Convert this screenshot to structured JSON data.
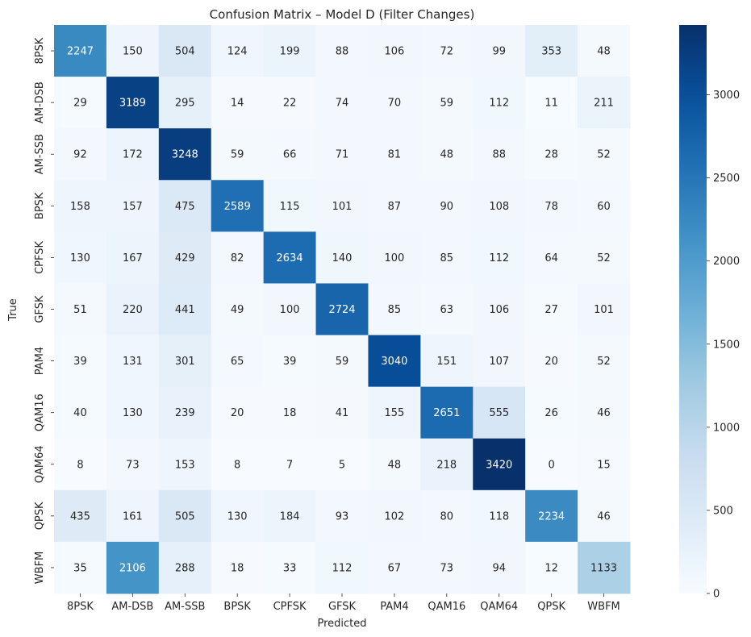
{
  "chart_data": {
    "type": "heatmap",
    "title": "Confusion Matrix – Model D (Filter Changes)",
    "xlabel": "Predicted",
    "ylabel": "True",
    "x_categories": [
      "8PSK",
      "AM-DSB",
      "AM-SSB",
      "BPSK",
      "CPFSK",
      "GFSK",
      "PAM4",
      "QAM16",
      "QAM64",
      "QPSK",
      "WBFM"
    ],
    "y_categories": [
      "8PSK",
      "AM-DSB",
      "AM-SSB",
      "BPSK",
      "CPFSK",
      "GFSK",
      "PAM4",
      "QAM16",
      "QAM64",
      "QPSK",
      "WBFM"
    ],
    "values": [
      [
        2247,
        150,
        504,
        124,
        199,
        88,
        106,
        72,
        99,
        353,
        48
      ],
      [
        29,
        3189,
        295,
        14,
        22,
        74,
        70,
        59,
        112,
        11,
        211
      ],
      [
        92,
        172,
        3248,
        59,
        66,
        71,
        81,
        48,
        88,
        28,
        52
      ],
      [
        158,
        157,
        475,
        2589,
        115,
        101,
        87,
        90,
        108,
        78,
        60
      ],
      [
        130,
        167,
        429,
        82,
        2634,
        140,
        100,
        85,
        112,
        64,
        52
      ],
      [
        51,
        220,
        441,
        49,
        100,
        2724,
        85,
        63,
        106,
        27,
        101
      ],
      [
        39,
        131,
        301,
        65,
        39,
        59,
        3040,
        151,
        107,
        20,
        52
      ],
      [
        40,
        130,
        239,
        20,
        18,
        41,
        155,
        2651,
        555,
        26,
        46
      ],
      [
        8,
        73,
        153,
        8,
        7,
        5,
        48,
        218,
        3420,
        0,
        15
      ],
      [
        435,
        161,
        505,
        130,
        184,
        93,
        102,
        80,
        118,
        2234,
        46
      ],
      [
        35,
        2106,
        288,
        18,
        33,
        112,
        67,
        73,
        94,
        12,
        1133
      ]
    ],
    "color_range": [
      0,
      3420
    ],
    "colormap": "Blues",
    "colorbar_ticks": [
      0,
      500,
      1000,
      1500,
      2000,
      2500,
      3000
    ],
    "grid": false,
    "legend": "colorbar-right"
  }
}
